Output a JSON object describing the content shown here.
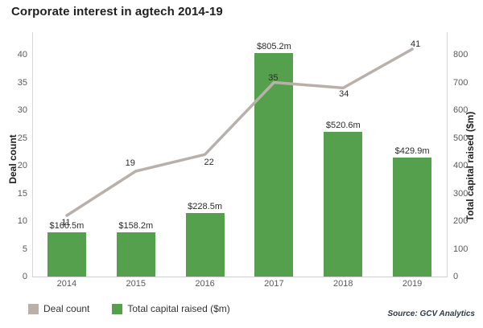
{
  "chart_data": {
    "type": "combo",
    "title": "Corporate interest in agtech 2014-19",
    "categories": [
      "2014",
      "2015",
      "2016",
      "2017",
      "2018",
      "2019"
    ],
    "series": [
      {
        "name": "Deal count",
        "type": "line",
        "axis": "left",
        "values": [
          11,
          19,
          22,
          35,
          34,
          41
        ],
        "point_labels": [
          "11",
          "19",
          "22",
          "35",
          "34",
          "41"
        ],
        "label_offsets": [
          [
            -1,
            9
          ],
          [
            -7,
            -10
          ],
          [
            5,
            10
          ],
          [
            -1,
            -6
          ],
          [
            1,
            8
          ],
          [
            4,
            -6
          ]
        ],
        "color": "#b9b0aa"
      },
      {
        "name": "Total capital raised ($m)",
        "type": "bar",
        "axis": "right",
        "values": [
          160.5,
          158.2,
          228.5,
          805.2,
          520.6,
          429.9
        ],
        "value_labels": [
          "$160.5m",
          "$158.2m",
          "$228.5m",
          "$805.2m",
          "$520.6m",
          "$429.9m"
        ],
        "color": "#55a04c"
      }
    ],
    "left_axis": {
      "label": "Deal count",
      "min": 0,
      "max": 40,
      "ticks": [
        0,
        5,
        10,
        15,
        20,
        25,
        30,
        35,
        40
      ]
    },
    "right_axis": {
      "label": "Total capital raised ($m)",
      "min": 0,
      "max": 800,
      "ticks": [
        0,
        100,
        200,
        300,
        400,
        500,
        600,
        700,
        800
      ]
    },
    "legend": [
      {
        "label": "Deal count",
        "color": "#b9b0aa"
      },
      {
        "label": "Total capital raised ($m)",
        "color": "#55a04c"
      }
    ],
    "legend_position": "bottom",
    "grid": false,
    "source": "Source: GCV Analytics"
  }
}
